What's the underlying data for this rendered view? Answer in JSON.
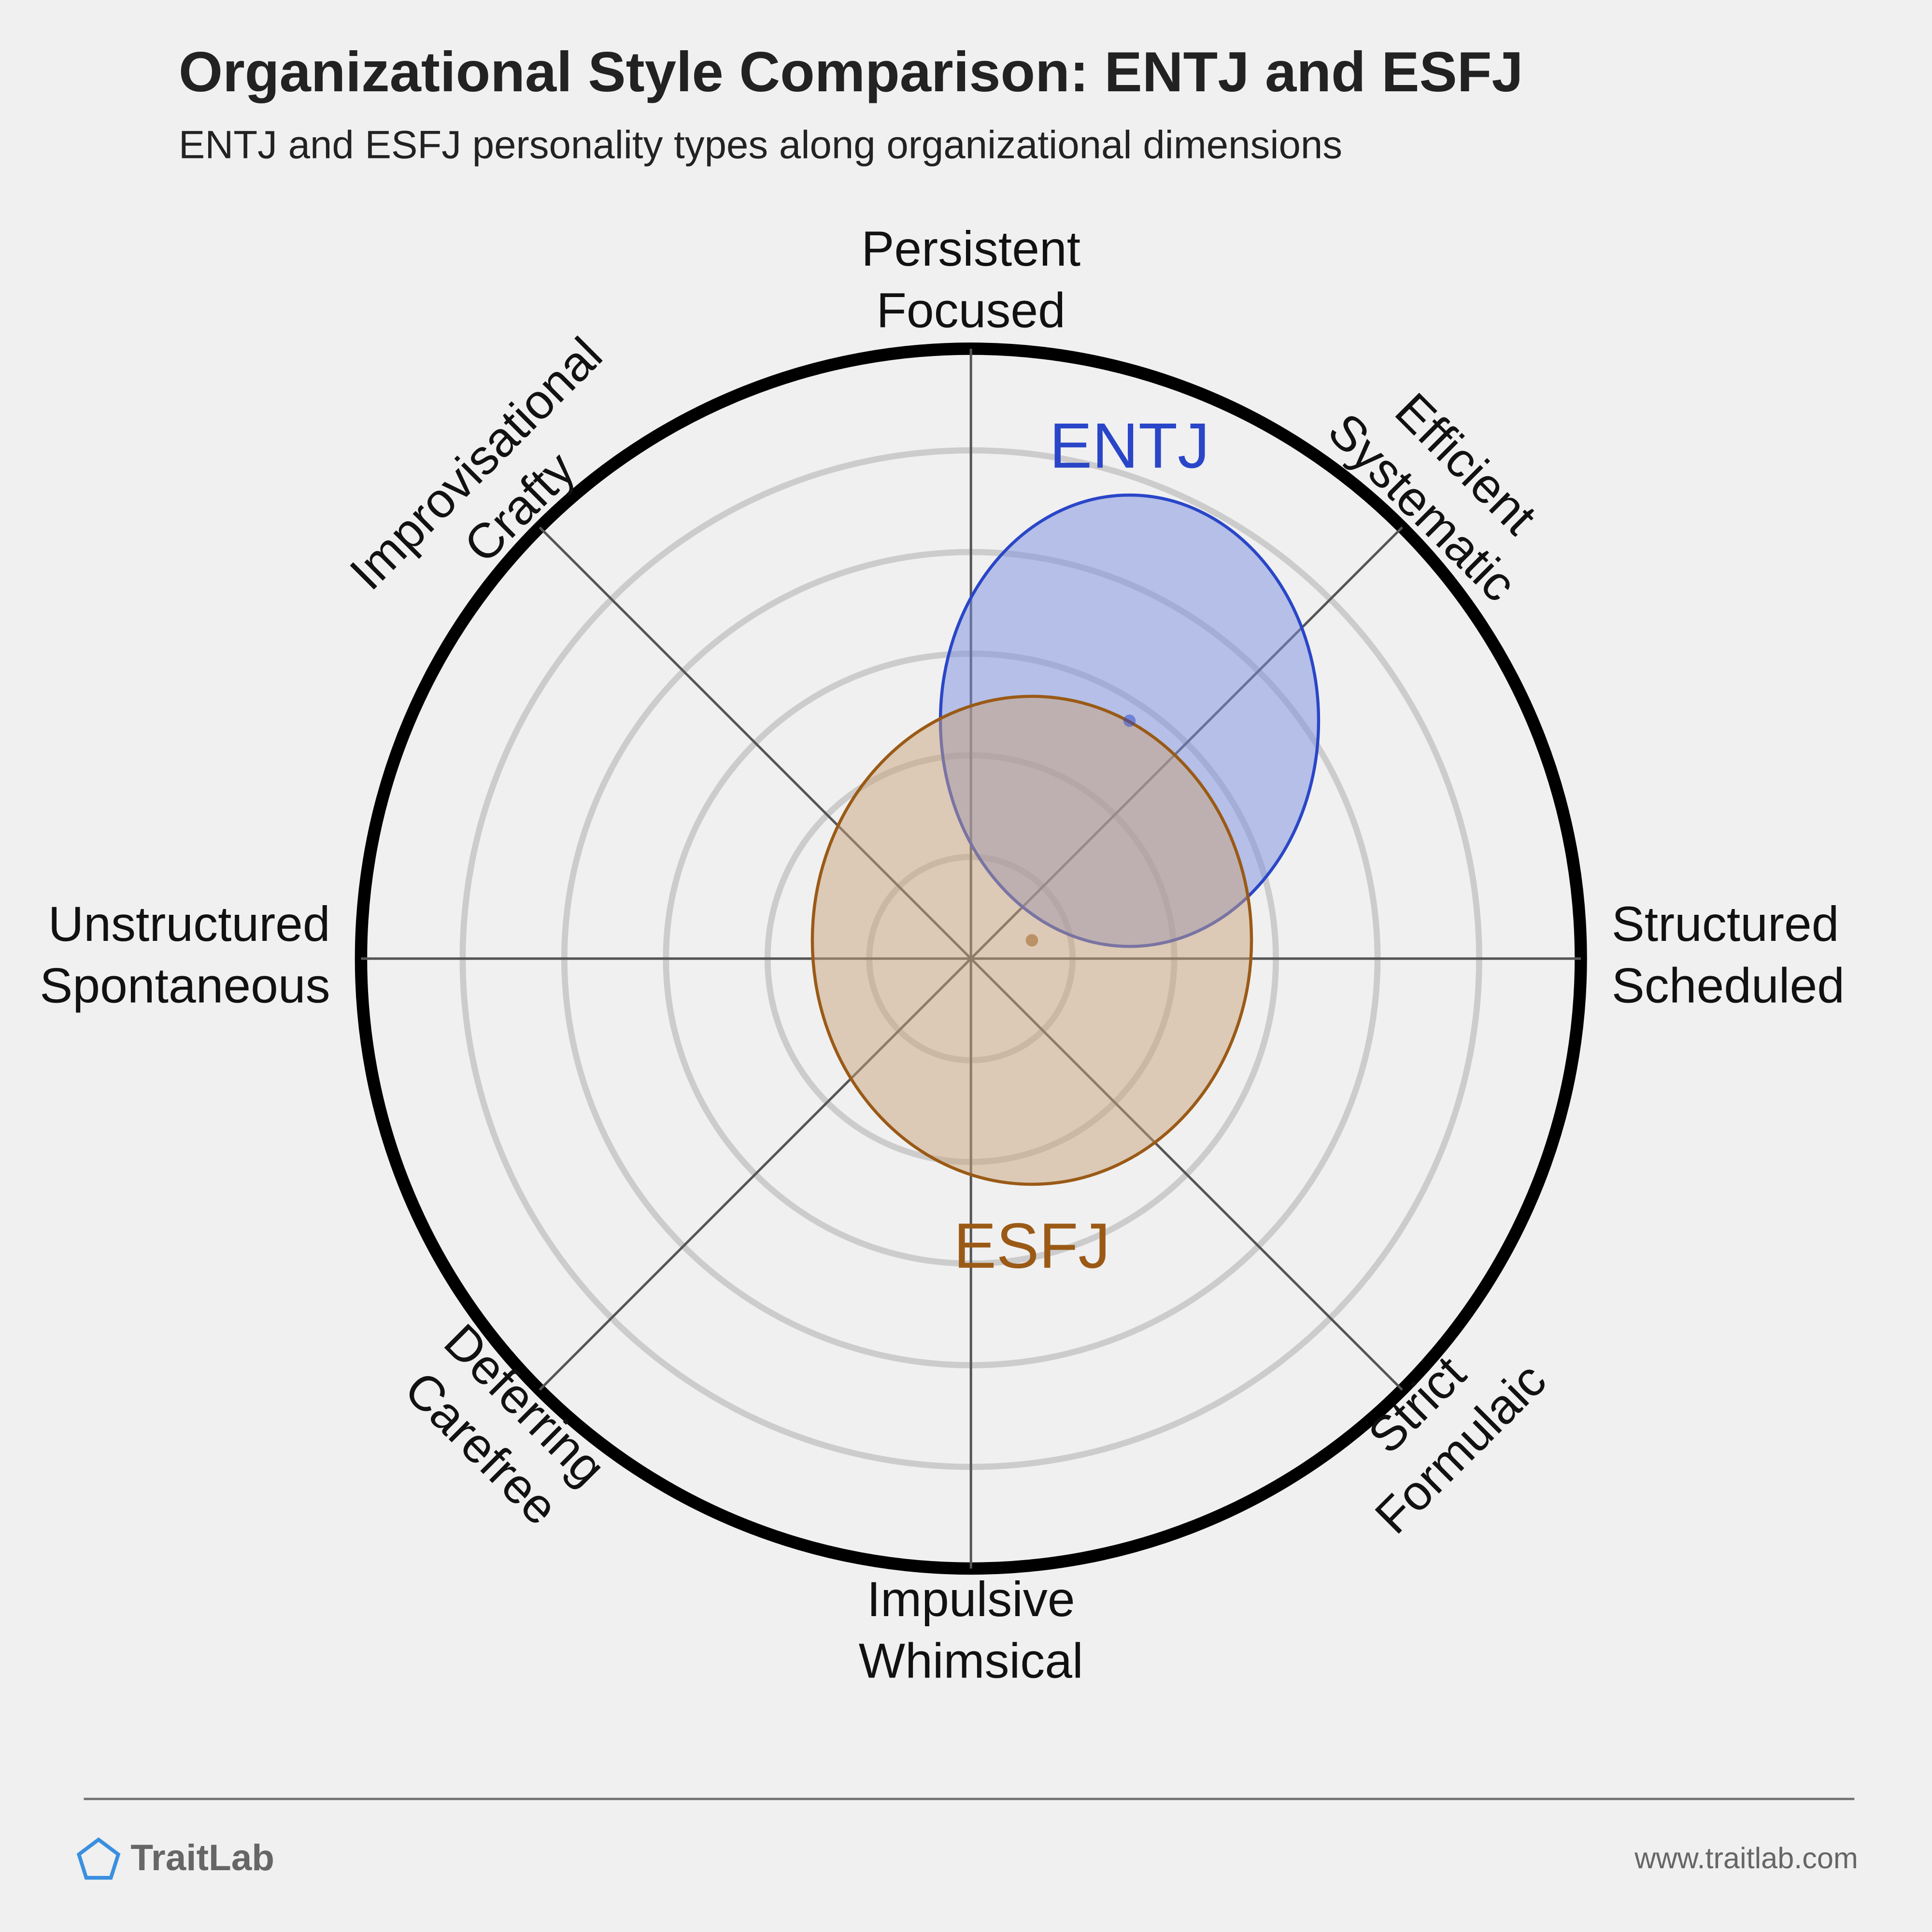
{
  "chart_data": {
    "type": "polar-ellipse",
    "title": "Organizational Style Comparison: ENTJ and ESFJ",
    "subtitle": "ENTJ and ESFJ personality types along organizational dimensions",
    "axis_labels": [
      [
        "Persistent",
        "Focused"
      ],
      [
        "Efficient",
        "Systematic"
      ],
      [
        "Structured",
        "Scheduled"
      ],
      [
        "Strict",
        "Formulaic"
      ],
      [
        "Impulsive",
        "Whimsical"
      ],
      [
        "Deferring",
        "Carefree"
      ],
      [
        "Unstructured",
        "Spontaneous"
      ],
      [
        "Improvisational",
        "Crafty"
      ]
    ],
    "xlim": [
      -100,
      100
    ],
    "ylim": [
      -100,
      100
    ],
    "rings": 6,
    "series": [
      {
        "name": "ENTJ",
        "color": "#2a46c8",
        "fill": "#7a8ede",
        "x": 26,
        "y": 39,
        "sx": 31,
        "sy": 37,
        "label_position": "above"
      },
      {
        "name": "ESFJ",
        "color": "#9a5a16",
        "fill": "#c8a27c",
        "x": 10,
        "y": 3,
        "sx": 36,
        "sy": 40,
        "label_position": "below"
      }
    ]
  },
  "footer": {
    "brand": "TraitLab",
    "url": "www.traitlab.com"
  }
}
